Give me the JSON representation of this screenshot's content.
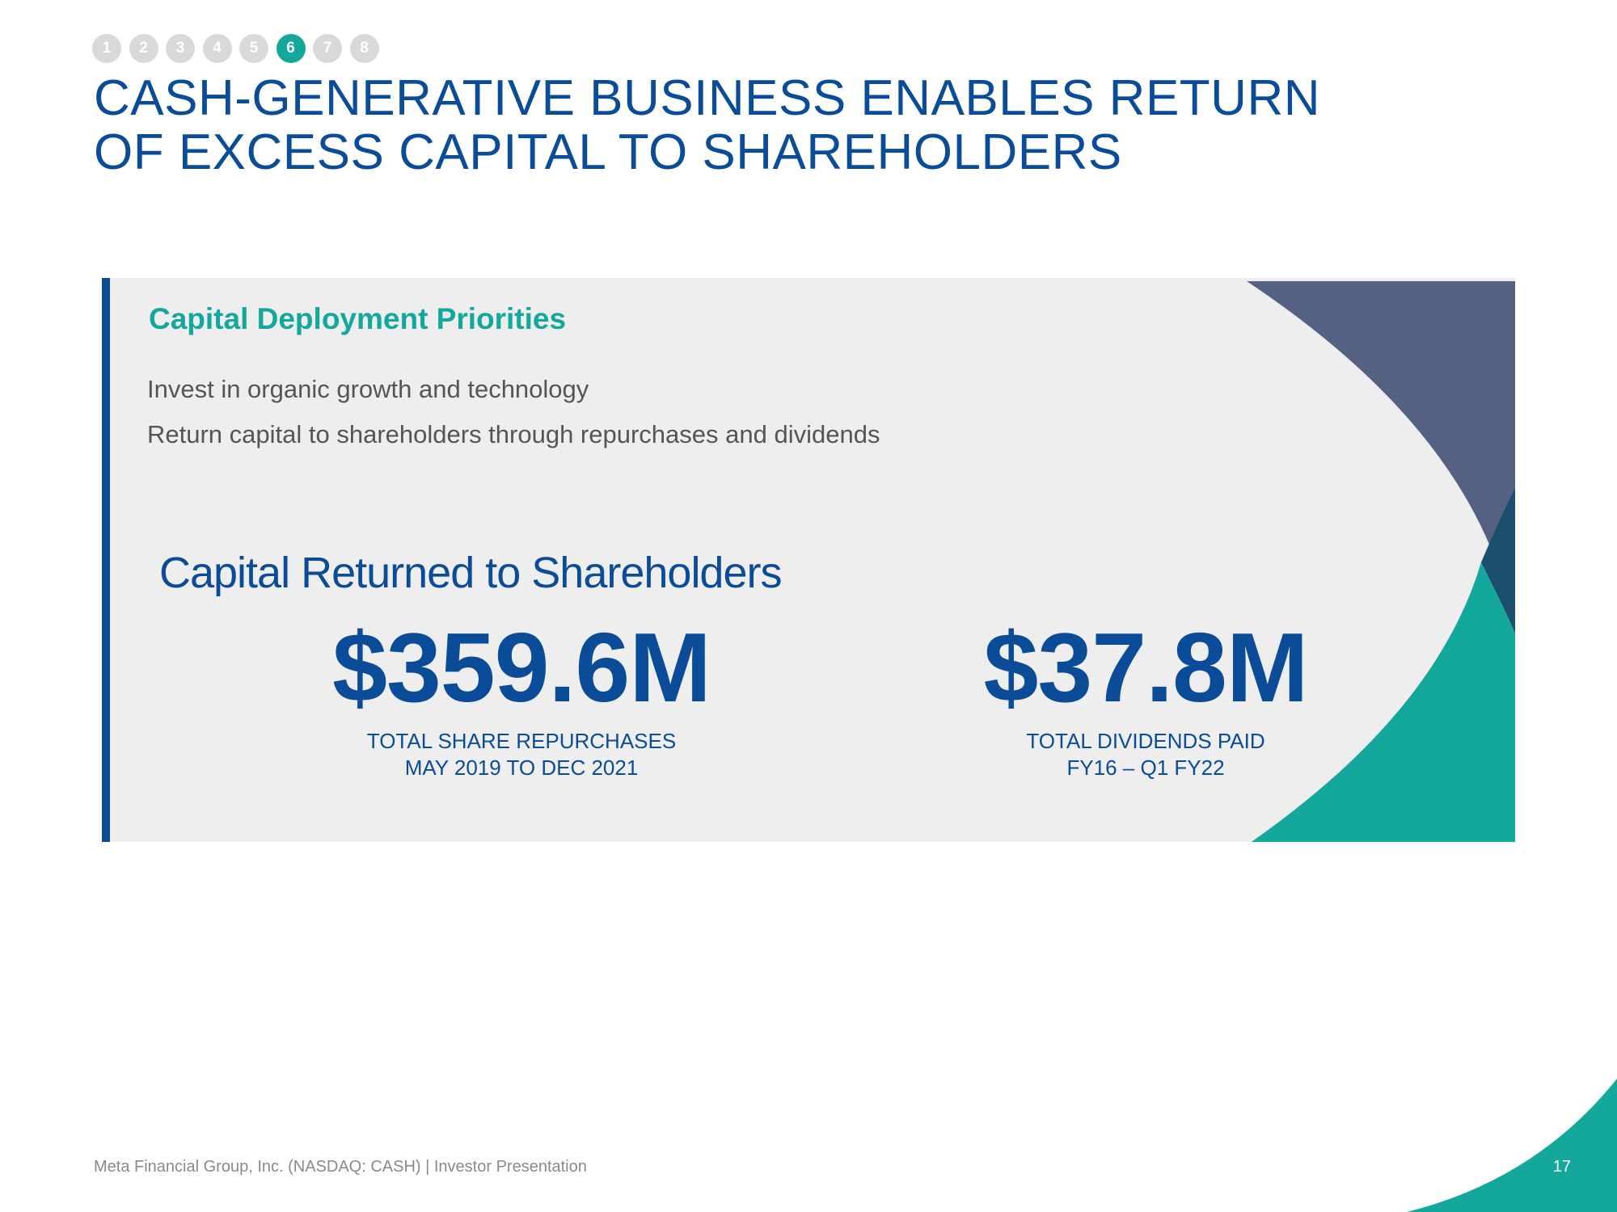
{
  "nav": {
    "sections": [
      "1",
      "2",
      "3",
      "4",
      "5",
      "6",
      "7",
      "8"
    ],
    "active": "6"
  },
  "title": {
    "line1": "CASH-GENERATIVE BUSINESS ENABLES RETURN",
    "line2": "OF EXCESS CAPITAL TO SHAREHOLDERS"
  },
  "priorities": {
    "heading": "Capital Deployment Priorities",
    "items": [
      "Invest in organic growth and technology",
      "Return capital to shareholders through repurchases and dividends"
    ]
  },
  "returns": {
    "heading": "Capital Returned to Shareholders",
    "metrics": [
      {
        "value": "$359.6M",
        "label_line1": "TOTAL SHARE REPURCHASES",
        "label_line2": "MAY 2019 TO DEC 2021"
      },
      {
        "value": "$37.8M",
        "label_line1": "TOTAL DIVIDENDS PAID",
        "label_line2": "FY16 – Q1 FY22"
      }
    ]
  },
  "footer": {
    "text": "Meta Financial Group, Inc. (NASDAQ: CASH) | Investor Presentation",
    "page_number": "17"
  },
  "colors": {
    "brand_blue": "#0a4c97",
    "teal": "#14a89c",
    "slate": "#546183",
    "dark_teal": "#1c4f6e",
    "panel_bg": "#eeeeee",
    "nav_inactive": "#d9d9d9"
  }
}
